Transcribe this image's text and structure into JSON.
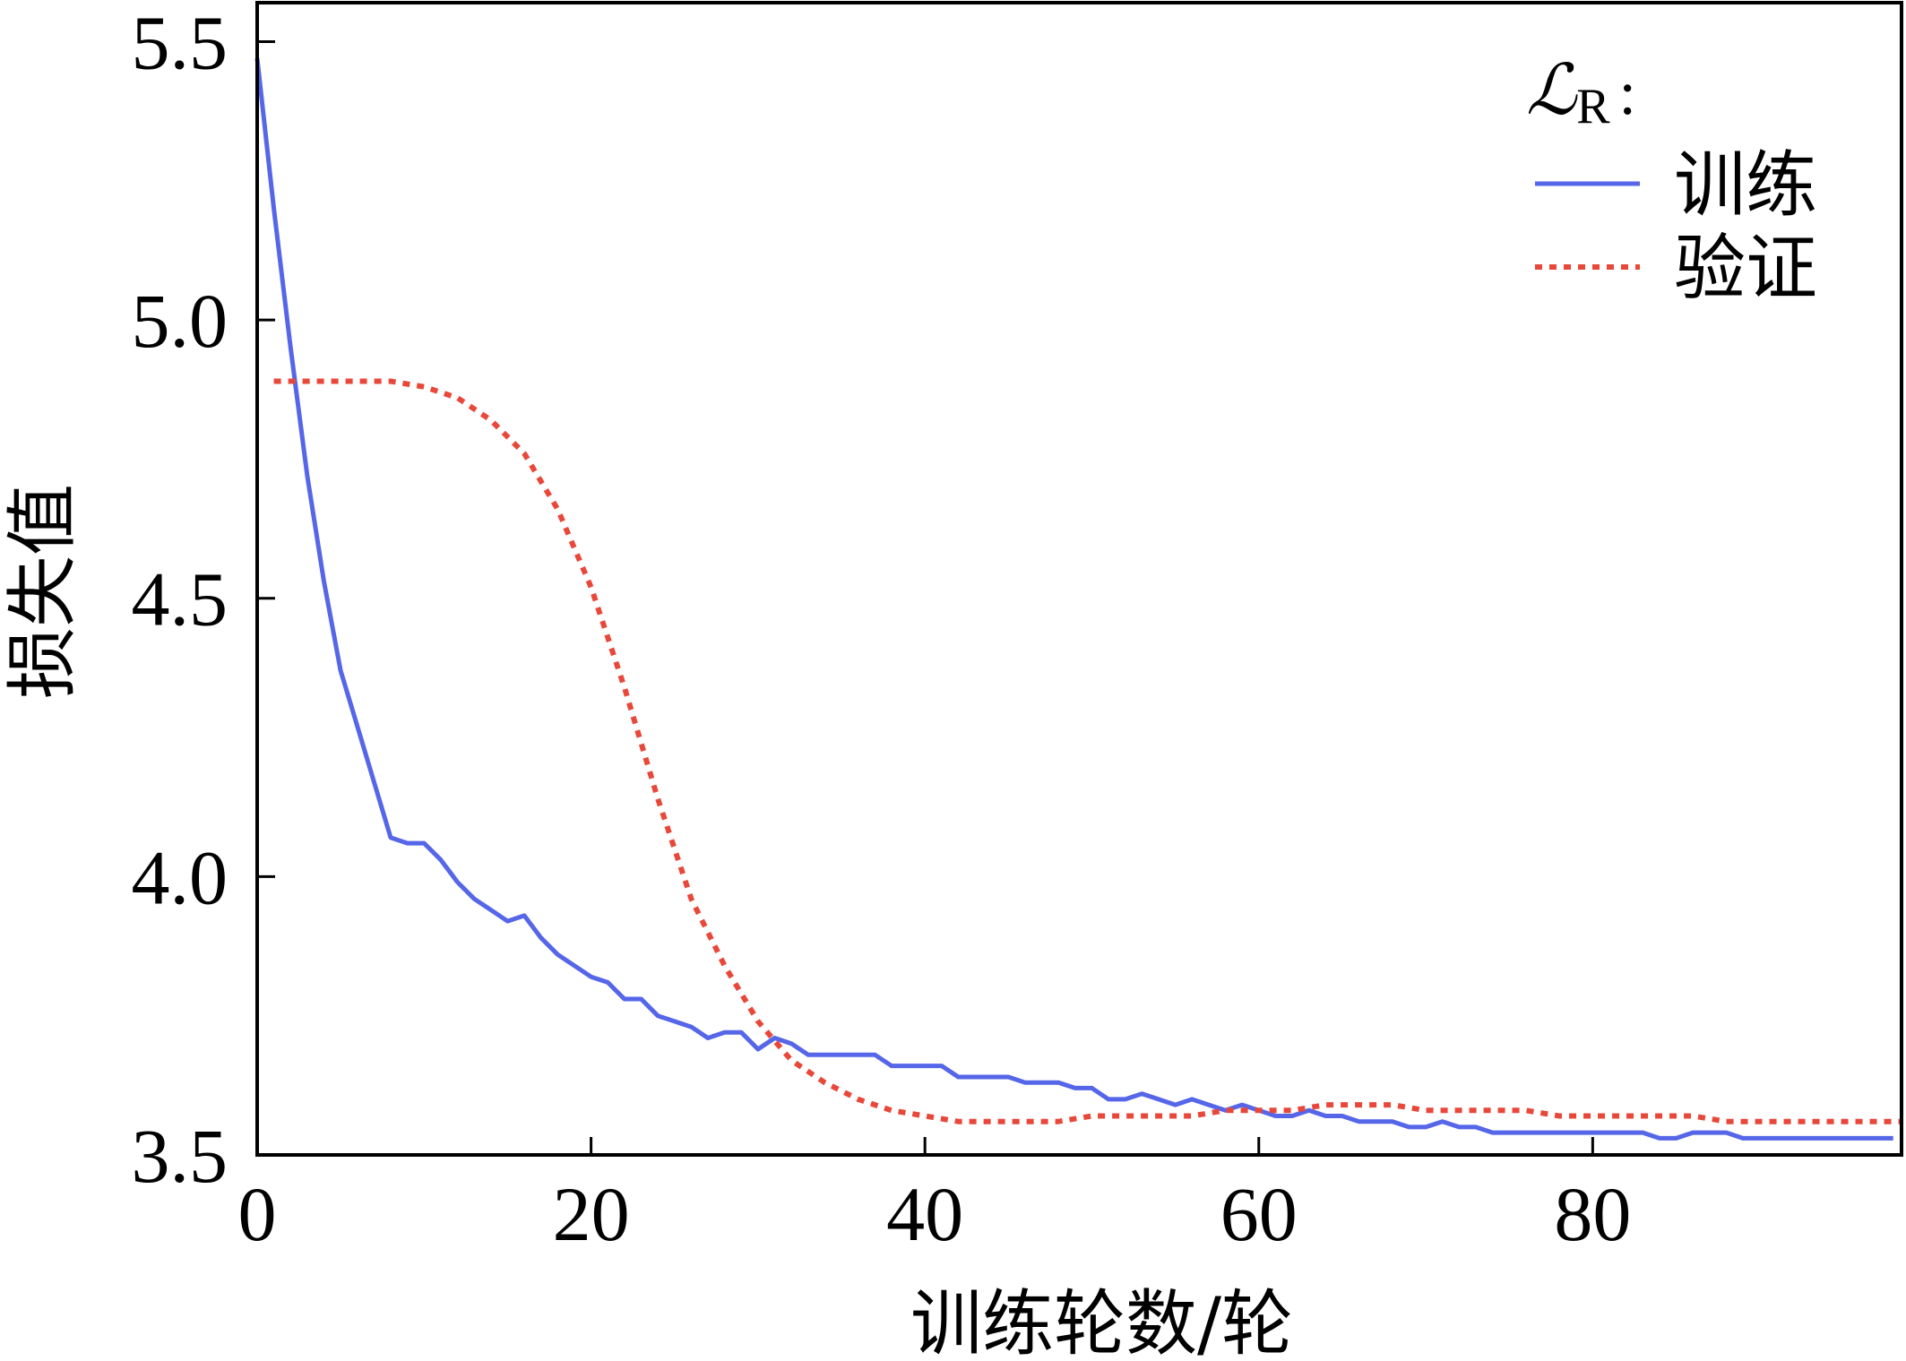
{
  "chart_data": {
    "type": "line",
    "xlabel": "训练轮数/轮",
    "ylabel": "损失值",
    "xlim": [
      0,
      98.5
    ],
    "ylim": [
      3.5,
      5.57
    ],
    "x_ticks": [
      0,
      20,
      40,
      60,
      80
    ],
    "y_ticks": [
      3.5,
      4.0,
      4.5,
      5.0,
      5.5
    ],
    "x_tick_labels": [
      "0",
      "20",
      "40",
      "60",
      "80"
    ],
    "y_tick_labels": [
      "3.5",
      "4.0",
      "4.5",
      "5.0",
      "5.5"
    ],
    "grid": false,
    "legend": {
      "position": "top-right",
      "title_symbol": "ℒ",
      "title_subscript": "R",
      "title_suffix": ":"
    },
    "series": [
      {
        "name": "训练",
        "color": "#5566e8",
        "style": "solid",
        "x": [
          0,
          1,
          2,
          3,
          4,
          5,
          6,
          7,
          8,
          9,
          10,
          11,
          12,
          13,
          14,
          15,
          16,
          17,
          18,
          19,
          20,
          21,
          22,
          23,
          24,
          25,
          26,
          27,
          28,
          29,
          30,
          31,
          32,
          33,
          34,
          35,
          36,
          37,
          38,
          39,
          40,
          41,
          42,
          43,
          44,
          45,
          46,
          47,
          48,
          49,
          50,
          51,
          52,
          53,
          54,
          55,
          56,
          57,
          58,
          59,
          60,
          61,
          62,
          63,
          64,
          65,
          66,
          67,
          68,
          69,
          70,
          71,
          72,
          73,
          74,
          75,
          76,
          77,
          78,
          79,
          80,
          81,
          82,
          83,
          84,
          85,
          86,
          87,
          88,
          89,
          90,
          91,
          92,
          93,
          94,
          95,
          96,
          97,
          98
        ],
        "values": [
          5.47,
          5.2,
          4.95,
          4.72,
          4.53,
          4.37,
          4.27,
          4.17,
          4.07,
          4.06,
          4.06,
          4.03,
          3.99,
          3.96,
          3.94,
          3.92,
          3.93,
          3.89,
          3.86,
          3.84,
          3.82,
          3.81,
          3.78,
          3.78,
          3.75,
          3.74,
          3.73,
          3.71,
          3.72,
          3.72,
          3.69,
          3.71,
          3.7,
          3.68,
          3.68,
          3.68,
          3.68,
          3.68,
          3.66,
          3.66,
          3.66,
          3.66,
          3.64,
          3.64,
          3.64,
          3.64,
          3.63,
          3.63,
          3.63,
          3.62,
          3.62,
          3.6,
          3.6,
          3.61,
          3.6,
          3.59,
          3.6,
          3.59,
          3.58,
          3.59,
          3.58,
          3.57,
          3.57,
          3.58,
          3.57,
          3.57,
          3.56,
          3.56,
          3.56,
          3.55,
          3.55,
          3.56,
          3.55,
          3.55,
          3.54,
          3.54,
          3.54,
          3.54,
          3.54,
          3.54,
          3.54,
          3.54,
          3.54,
          3.54,
          3.53,
          3.53,
          3.54,
          3.54,
          3.54,
          3.53,
          3.53,
          3.53,
          3.53,
          3.53,
          3.53,
          3.53,
          3.53,
          3.53,
          3.53
        ]
      },
      {
        "name": "验证",
        "color": "#e8483a",
        "style": "dotted",
        "x": [
          1,
          4,
          8,
          10,
          12,
          14,
          16,
          18,
          20,
          22,
          24,
          26,
          28,
          30,
          32,
          34,
          36,
          38,
          40,
          42,
          44,
          46,
          48,
          50,
          52,
          54,
          56,
          58,
          60,
          62,
          64,
          66,
          68,
          70,
          72,
          74,
          76,
          78,
          80,
          82,
          84,
          86,
          88,
          90,
          92,
          94,
          96,
          98.5
        ],
        "values": [
          4.89,
          4.89,
          4.89,
          4.88,
          4.86,
          4.82,
          4.76,
          4.66,
          4.52,
          4.34,
          4.14,
          3.96,
          3.84,
          3.74,
          3.67,
          3.63,
          3.6,
          3.58,
          3.57,
          3.56,
          3.56,
          3.56,
          3.56,
          3.57,
          3.57,
          3.57,
          3.57,
          3.58,
          3.58,
          3.58,
          3.59,
          3.59,
          3.59,
          3.58,
          3.58,
          3.58,
          3.58,
          3.57,
          3.57,
          3.57,
          3.57,
          3.57,
          3.56,
          3.56,
          3.56,
          3.56,
          3.56,
          3.56
        ]
      }
    ]
  }
}
